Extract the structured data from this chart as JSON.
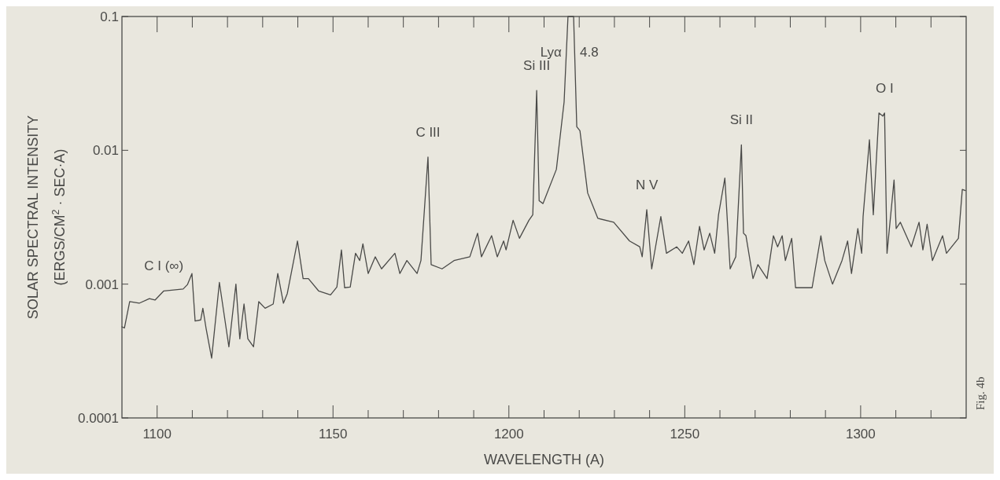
{
  "chart_data": {
    "type": "line",
    "xlabel": "WAVELENGTH (A)",
    "ylabel": "SOLAR SPECTRAL INTENSITY\n(ERGS/CM$^{2}$ · SEC·A)",
    "log": true,
    "grid": false,
    "marker": "none",
    "line_style": "solid",
    "xlim": [
      1090,
      1330
    ],
    "ylim": [
      0.0001,
      0.1
    ],
    "xticks": [
      1100,
      {
        "value": 1110,
        "label": null
      },
      {
        "value": 1120,
        "label": null
      },
      {
        "value": 1130,
        "label": null
      },
      {
        "value": 1140,
        "label": null
      },
      1150,
      {
        "value": 1160,
        "label": null
      },
      {
        "value": 1170,
        "label": null
      },
      {
        "value": 1180,
        "label": null
      },
      {
        "value": 1190,
        "label": null
      },
      1200,
      {
        "value": 1210,
        "label": null
      },
      {
        "value": 1220,
        "label": null
      },
      {
        "value": 1230,
        "label": null
      },
      {
        "value": 1240,
        "label": null
      },
      1250,
      {
        "value": 1260,
        "label": null
      },
      {
        "value": 1270,
        "label": null
      },
      {
        "value": 1280,
        "label": null
      },
      {
        "value": 1290,
        "label": null
      },
      1300,
      {
        "value": 1310,
        "label": null
      },
      {
        "value": 1320,
        "label": null
      }
    ],
    "yticks": [
      0.0001,
      0.001,
      0.01,
      0.1
    ],
    "series": [
      {
        "color": "#4a4a48",
        "x": [
          1090,
          1090.7,
          1092.2,
          1094.9,
          1097.8,
          1099.4,
          1101.9,
          1107.4,
          1108.6,
          1109.9,
          1110.8,
          1112.4,
          1113,
          1113.9,
          1115.5,
          1117.7,
          1120.4,
          1122.4,
          1123.5,
          1124.7,
          1125.8,
          1127.4,
          1128.9,
          1130.7,
          1133,
          1134.3,
          1135.9,
          1137,
          1139.9,
          1141.5,
          1143,
          1145.9,
          1149.3,
          1151.1,
          1152.4,
          1153.3,
          1154.9,
          1156.4,
          1157.6,
          1158.5,
          1160,
          1162,
          1163.8,
          1167.6,
          1169,
          1171,
          1173.9,
          1175,
          1177,
          1177.9,
          1181,
          1184.4,
          1188.9,
          1191.1,
          1192.2,
          1195.1,
          1196.7,
          1198.5,
          1199.2,
          1201.2,
          1203,
          1205.7,
          1206.8,
          1207.9,
          1208.6,
          1209.7,
          1213.5,
          1215.7,
          1216.8,
          1218.4,
          1219.3,
          1220.2,
          1222.4,
          1225.3,
          1229.8,
          1234.3,
          1237.2,
          1237.9,
          1239.2,
          1240.6,
          1243.2,
          1244.8,
          1247.7,
          1249.3,
          1251.1,
          1252.6,
          1254.2,
          1255.5,
          1257.1,
          1258.5,
          1259.6,
          1261.4,
          1262.9,
          1264.5,
          1266.1,
          1266.7,
          1267.4,
          1269.4,
          1270.8,
          1273.4,
          1275.2,
          1276.4,
          1277.7,
          1278.6,
          1280.4,
          1281.5,
          1286.2,
          1288.7,
          1289.8,
          1292,
          1294.7,
          1296.3,
          1297.4,
          1299.2,
          1300.3,
          1300.7,
          1302.5,
          1303.6,
          1305.2,
          1306.3,
          1306.8,
          1307.5,
          1309.5,
          1310.1,
          1311.3,
          1313.3,
          1314.4,
          1316.6,
          1317.7,
          1318.9,
          1320.4,
          1323.3,
          1324.4,
          1327.8,
          1328.9,
          1329.8
        ],
        "values": [
          0.00048,
          0.00047,
          0.00074,
          0.00072,
          0.00078,
          0.00076,
          0.00089,
          0.00092,
          0.00099,
          0.0012,
          0.00053,
          0.00054,
          0.00066,
          0.00047,
          0.00028,
          0.00103,
          0.00034,
          0.001,
          0.00039,
          0.00071,
          0.00039,
          0.00034,
          0.00074,
          0.00066,
          0.00071,
          0.0012,
          0.00072,
          0.00085,
          0.0021,
          0.0011,
          0.0011,
          0.00089,
          0.00083,
          0.00095,
          0.0018,
          0.00094,
          0.00095,
          0.0017,
          0.0015,
          0.002,
          0.0012,
          0.0016,
          0.0013,
          0.0017,
          0.0012,
          0.0015,
          0.0012,
          0.0015,
          0.0089,
          0.0014,
          0.0013,
          0.0015,
          0.0016,
          0.0024,
          0.0016,
          0.0023,
          0.0016,
          0.0021,
          0.0018,
          0.003,
          0.0022,
          0.003,
          0.0033,
          0.028,
          0.0042,
          0.004,
          0.0072,
          0.023,
          0.1,
          0.1,
          0.015,
          0.014,
          0.0048,
          0.0031,
          0.0029,
          0.0021,
          0.0019,
          0.0016,
          0.0036,
          0.0013,
          0.0032,
          0.0017,
          0.0019,
          0.0017,
          0.0021,
          0.0014,
          0.0027,
          0.0018,
          0.0024,
          0.0017,
          0.0033,
          0.0062,
          0.0013,
          0.0016,
          0.011,
          0.0024,
          0.0023,
          0.0011,
          0.0014,
          0.0011,
          0.0023,
          0.0019,
          0.0023,
          0.0015,
          0.0022,
          0.00094,
          0.00094,
          0.0023,
          0.0015,
          0.001,
          0.0015,
          0.0021,
          0.0012,
          0.0026,
          0.0017,
          0.0032,
          0.012,
          0.0033,
          0.019,
          0.018,
          0.019,
          0.0017,
          0.006,
          0.0026,
          0.0029,
          0.0022,
          0.0019,
          0.0029,
          0.0018,
          0.0028,
          0.0015,
          0.0023,
          0.0017,
          0.0022,
          0.0051,
          0.005
        ]
      }
    ],
    "annotations": [
      {
        "text": "C I (∞)",
        "x": 1101.9,
        "y": 0.00089
      },
      {
        "text": "C III",
        "x": 1177,
        "y": 0.0089
      },
      {
        "text": "Si III",
        "x": 1207.9,
        "y": 0.028
      },
      {
        "text": "Lyα",
        "x": 1216.8,
        "y": 0.1
      },
      {
        "text": "4.8",
        "x": 1218.4,
        "y": 0.1
      },
      {
        "text": "N V",
        "x": 1239.2,
        "y": 0.0036
      },
      {
        "text": "Si II",
        "x": 1266.1,
        "y": 0.011
      },
      {
        "text": "O I",
        "x": 1306.8,
        "y": 0.019
      },
      "Fig. 4b"
    ]
  }
}
